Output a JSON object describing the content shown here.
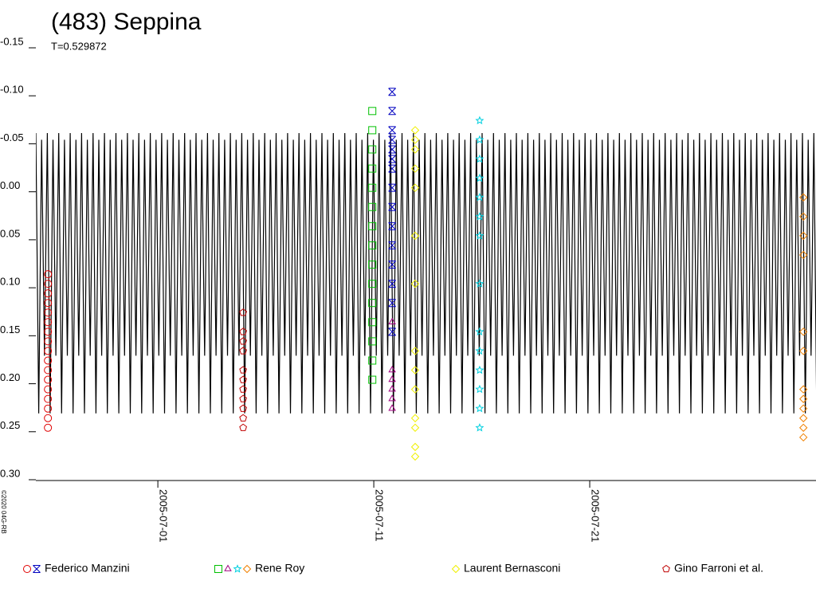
{
  "chart_data": {
    "type": "lightcurve",
    "title": "(483) Seppina",
    "subtitle": "T=0.529872",
    "period": 0.529872,
    "copyright": "©2020 04G-RB",
    "xlim": [
      "2005-06-25T08:24",
      "2005-07-31T11:30"
    ],
    "xticks": [
      "2005-07-01",
      "2005-07-11",
      "2005-07-21"
    ],
    "ylim": [
      0.3,
      -0.15
    ],
    "yticks": [
      {
        "value": -0.15,
        "label": "-0.15"
      },
      {
        "value": -0.1,
        "label": "-0.10"
      },
      {
        "value": -0.05,
        "label": "-0.05"
      },
      {
        "value": 0.0,
        "label": "0.00"
      },
      {
        "value": 0.05,
        "label": "0.05"
      },
      {
        "value": 0.1,
        "label": "0.10"
      },
      {
        "value": 0.15,
        "label": "0.15"
      },
      {
        "value": 0.2,
        "label": "0.20"
      },
      {
        "value": 0.25,
        "label": "0.25"
      },
      {
        "value": 0.3,
        "label": "0.30"
      }
    ],
    "model": {
      "color": "#000000",
      "phase": [
        0,
        0.25,
        0.5,
        0.75,
        1
      ],
      "values": [
        -0.057,
        0.235,
        -0.05,
        0.175,
        -0.057
      ]
    },
    "series": [
      {
        "name": "Federico Manzini",
        "markers": [
          {
            "symbol": "circle",
            "color": "#e00000",
            "x": "2005-06-25T21:50",
            "values": [
              0.09,
              0.1,
              0.11,
              0.12,
              0.13,
              0.14,
              0.15,
              0.16,
              0.17,
              0.18,
              0.19,
              0.2,
              0.21,
              0.22,
              0.23,
              0.24,
              0.25
            ]
          },
          {
            "symbol": "cross",
            "color": "#0000c0",
            "x": "2005-07-11T20:24",
            "values": [
              -0.1,
              -0.08,
              -0.06,
              -0.05,
              -0.04,
              -0.03,
              -0.02,
              0.0,
              0.02,
              0.04,
              0.06,
              0.08,
              0.1,
              0.12,
              0.15
            ]
          }
        ]
      },
      {
        "name": "Rene Roy",
        "markers": [
          {
            "symbol": "square",
            "color": "#00c000",
            "x": "2005-07-10T22:20",
            "values": [
              -0.08,
              -0.06,
              -0.04,
              -0.02,
              0.0,
              0.02,
              0.04,
              0.06,
              0.08,
              0.1,
              0.12,
              0.14,
              0.16,
              0.18,
              0.2
            ]
          },
          {
            "symbol": "triangle",
            "color": "#a00080",
            "x": "2005-07-11T20:24",
            "values": [
              0.14,
              0.19,
              0.2,
              0.21,
              0.22,
              0.23
            ]
          },
          {
            "symbol": "star",
            "color": "#00d0e0",
            "x": "2005-07-15T21:40",
            "values": [
              -0.07,
              -0.05,
              -0.03,
              -0.01,
              0.01,
              0.03,
              0.05,
              0.1,
              0.15,
              0.17,
              0.19,
              0.21,
              0.23,
              0.25
            ]
          },
          {
            "symbol": "diamond",
            "color": "#f08000",
            "x": "2005-07-30T21:30",
            "values": [
              0.01,
              0.03,
              0.05,
              0.07,
              0.15,
              0.17,
              0.21,
              0.22,
              0.23,
              0.24,
              0.25,
              0.26
            ]
          }
        ]
      },
      {
        "name": "Laurent Bernasconi",
        "markers": [
          {
            "symbol": "diamond",
            "color": "#f0f000",
            "x": "2005-07-12T22:00",
            "values": [
              -0.06,
              -0.05,
              -0.04,
              -0.02,
              0.0,
              0.05,
              0.1,
              0.17,
              0.19,
              0.21,
              0.24,
              0.25,
              0.27,
              0.28
            ]
          }
        ]
      },
      {
        "name": "Gino Farroni et al.",
        "markers": [
          {
            "symbol": "pentagon",
            "color": "#c00000",
            "x": "2005-07-04T22:48",
            "values": [
              0.13,
              0.15,
              0.16,
              0.17,
              0.19,
              0.2,
              0.21,
              0.22,
              0.23,
              0.24,
              0.25
            ]
          }
        ]
      }
    ]
  }
}
